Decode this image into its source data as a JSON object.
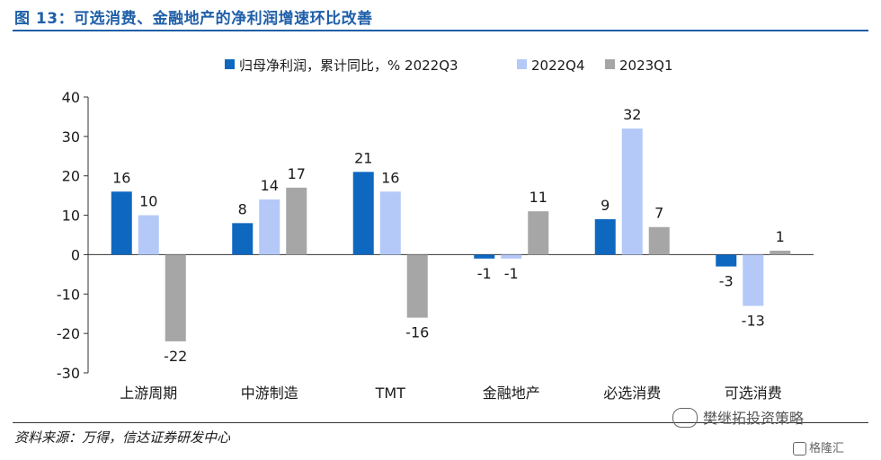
{
  "figure_title": "图 13：可选消费、金融地产的净利润增速环比改善",
  "source_note": "资料来源：万得，信达证券研发中心",
  "watermark": "樊继拓投资策略",
  "watermark2": "格隆汇",
  "chart_data": {
    "type": "bar",
    "categories": [
      "上游周期",
      "中游制造",
      "TMT",
      "金融地产",
      "必选消费",
      "可选消费"
    ],
    "legend_prefix": "归母净利润，累计同比，%",
    "series": [
      {
        "name": "2022Q3",
        "color": "#0f68c0",
        "values": [
          16,
          8,
          21,
          -1,
          9,
          -3
        ]
      },
      {
        "name": "2022Q4",
        "color": "#b4c9f8",
        "values": [
          10,
          14,
          16,
          -1,
          32,
          -13
        ]
      },
      {
        "name": "2023Q1",
        "color": "#a6a6a6",
        "values": [
          -22,
          17,
          -16,
          11,
          7,
          1
        ]
      }
    ],
    "ylim": [
      -30,
      40
    ],
    "yticks": [
      -30,
      -20,
      -10,
      0,
      10,
      20,
      30,
      40
    ],
    "legend_position": "top"
  }
}
